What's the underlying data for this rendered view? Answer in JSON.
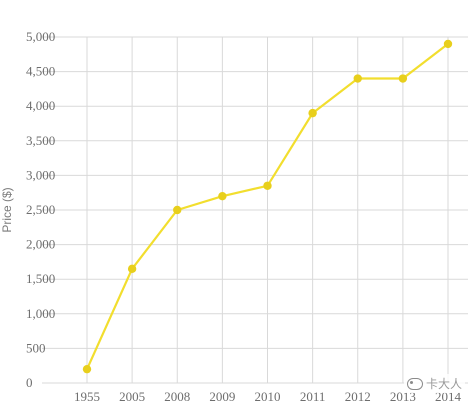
{
  "chart_data": {
    "type": "line",
    "title": "",
    "xlabel": "",
    "ylabel": "Price ($)",
    "categories": [
      "1955",
      "2005",
      "2008",
      "2009",
      "2010",
      "2011",
      "2012",
      "2013",
      "2014"
    ],
    "series": [
      {
        "values": [
          200,
          1650,
          2500,
          2700,
          2850,
          3900,
          4400,
          4400,
          4900
        ]
      }
    ],
    "ylim": [
      0,
      5000
    ],
    "yticks": [
      0,
      500,
      1000,
      1500,
      2000,
      2500,
      3000,
      3500,
      4000,
      4500,
      5000
    ],
    "ytick_labels": [
      "0",
      "500",
      "1,000",
      "1,500",
      "2,000",
      "2,500",
      "3,000",
      "3,500",
      "4,000",
      "4,500",
      "5,000"
    ],
    "grid": true,
    "legend": "none",
    "line_color": "#f2de2e",
    "marker_color": "#e8cf1c",
    "grid_color": "#d9d9d9"
  },
  "watermark": {
    "text": "卡大人",
    "icon": "wechat-icon"
  }
}
